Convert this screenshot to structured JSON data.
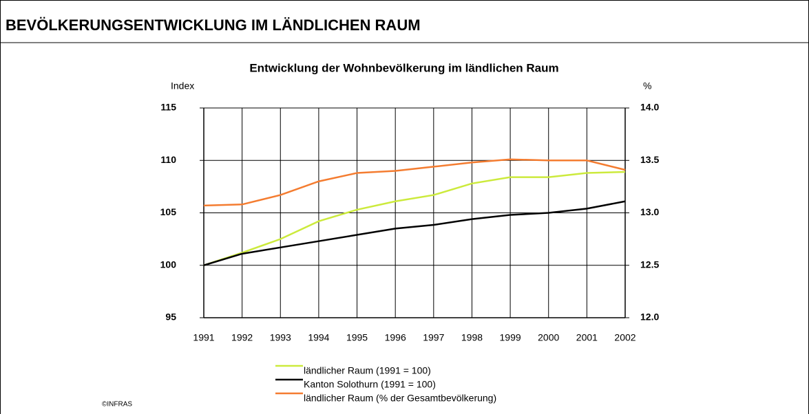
{
  "header": {
    "title": "BEVÖLKERUNGSENTWICKLUNG IM LÄNDLICHEN RAUM"
  },
  "footer": {
    "credit": "©INFRAS"
  },
  "chart_data": {
    "type": "line",
    "title": "Entwicklung der Wohnbevölkerung im ländlichen Raum",
    "y_label": "Index",
    "y2_label": "%",
    "categories": [
      "1991",
      "1992",
      "1993",
      "1994",
      "1995",
      "1996",
      "1997",
      "1998",
      "1999",
      "2000",
      "2001",
      "2002"
    ],
    "series": [
      {
        "name": "ländlicher Raum (1991 = 100)",
        "color": "#ccea3c",
        "values": [
          100,
          101.2,
          102.5,
          104.2,
          105.3,
          106.1,
          106.7,
          107.8,
          108.4,
          108.4,
          108.8,
          108.9
        ]
      },
      {
        "name": "Kanton Solothurn (1991 = 100)",
        "color": "#000000",
        "values": [
          100,
          101.1,
          101.7,
          102.3,
          102.9,
          103.5,
          103.85,
          104.4,
          104.8,
          105.0,
          105.4,
          106.1
        ]
      },
      {
        "name": "ländlicher Raum (% der Gesamtbevölkerung)",
        "color": "#f47c30",
        "axis": "y2",
        "values": [
          13.07,
          13.08,
          13.17,
          13.3,
          13.38,
          13.4,
          13.44,
          13.48,
          13.51,
          13.5,
          13.5,
          13.41
        ]
      }
    ],
    "ylim": [
      95,
      115
    ],
    "yticks": [
      95,
      100,
      105,
      110,
      115
    ],
    "y2lim": [
      12,
      14
    ],
    "y2ticks": [
      {
        "value": 12,
        "label": "12.0"
      },
      12.5,
      {
        "value": 13,
        "label": "13.0"
      },
      13.5,
      {
        "value": 14,
        "label": "14.0"
      }
    ],
    "grid": true
  }
}
